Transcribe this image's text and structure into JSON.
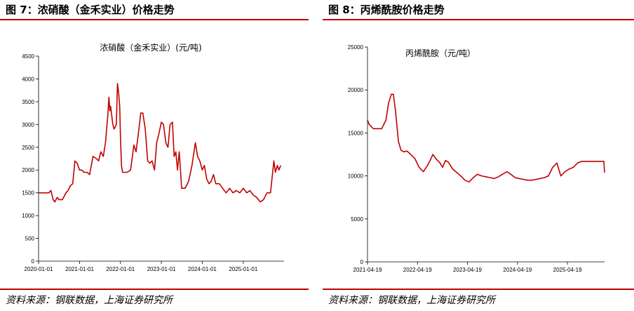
{
  "left_panel": {
    "figure_title": "图 7：浓硝酸（金禾实业）价格走势",
    "source": "资料来源：钢联数据，上海证券研究所"
  },
  "right_panel": {
    "figure_title": "图 8：丙烯酰胺价格走势",
    "source": "资料来源：钢联数据，上海证券研究所"
  },
  "colors": {
    "line": "#c00000",
    "rule": "#c00000"
  },
  "chart_data": [
    {
      "type": "line",
      "title": "浓硝酸（金禾实业）(元/吨)",
      "x_ticks": [
        "2020-01-01",
        "2021-01-01",
        "2022-01-01",
        "2023-01-01",
        "2024-01-01",
        "2025-01-01"
      ],
      "y_ticks": [
        "0",
        "500",
        "1000",
        "1500",
        "2000",
        "2500",
        "3000",
        "3500",
        "4000",
        "4500"
      ],
      "xlim": [
        "2020-01-01",
        "2025-12-31"
      ],
      "ylim": [
        0,
        4500
      ],
      "grid": false,
      "series": [
        {
          "x": [
            "2020-01-01",
            "2020-04-01",
            "2020-04-20",
            "2020-05-10",
            "2020-05-25",
            "2020-06-15",
            "2020-07-01",
            "2020-08-01",
            "2020-09-01",
            "2020-09-20",
            "2020-10-10",
            "2020-11-01",
            "2020-11-20",
            "2020-12-10",
            "2021-01-01",
            "2021-01-20",
            "2021-02-10",
            "2021-03-10",
            "2021-04-01",
            "2021-05-01",
            "2021-06-01",
            "2021-06-20",
            "2021-07-10",
            "2021-08-01",
            "2021-08-20",
            "2021-09-10",
            "2021-09-20",
            "2021-09-28",
            "2021-10-05",
            "2021-10-15",
            "2021-10-25",
            "2021-11-05",
            "2021-11-15",
            "2021-11-25",
            "2021-12-05",
            "2021-12-15",
            "2021-12-25",
            "2022-01-01",
            "2022-01-10",
            "2022-01-20",
            "2022-02-10",
            "2022-03-01",
            "2022-04-01",
            "2022-05-01",
            "2022-05-20",
            "2022-06-10",
            "2022-07-01",
            "2022-07-20",
            "2022-08-10",
            "2022-09-01",
            "2022-09-20",
            "2022-10-10",
            "2022-11-01",
            "2022-11-20",
            "2022-12-10",
            "2023-01-01",
            "2023-01-20",
            "2023-02-10",
            "2023-03-01",
            "2023-03-20",
            "2023-04-10",
            "2023-04-25",
            "2023-05-10",
            "2023-05-25",
            "2023-06-10",
            "2023-07-01",
            "2023-08-01",
            "2023-09-01",
            "2023-10-01",
            "2023-11-01",
            "2023-11-20",
            "2023-12-10",
            "2024-01-01",
            "2024-01-20",
            "2024-02-10",
            "2024-03-01",
            "2024-03-20",
            "2024-04-10",
            "2024-05-01",
            "2024-06-01",
            "2024-07-01",
            "2024-08-01",
            "2024-09-01",
            "2024-10-01",
            "2024-11-01",
            "2024-12-01",
            "2025-01-01",
            "2025-02-01",
            "2025-03-01",
            "2025-04-01",
            "2025-05-01",
            "2025-06-01",
            "2025-07-01",
            "2025-08-01",
            "2025-09-01",
            "2025-10-01",
            "2025-10-15",
            "2025-11-01",
            "2025-11-15",
            "2025-12-01"
          ],
          "y": [
            1500,
            1500,
            1550,
            1350,
            1300,
            1400,
            1350,
            1350,
            1500,
            1550,
            1650,
            1700,
            2200,
            2150,
            2000,
            2000,
            1950,
            1950,
            1900,
            2300,
            2250,
            2200,
            2400,
            2300,
            2600,
            3200,
            3600,
            3300,
            3400,
            3200,
            3000,
            2900,
            2950,
            3000,
            3900,
            3700,
            3400,
            2700,
            2100,
            1950,
            1950,
            1950,
            2000,
            2550,
            2400,
            2800,
            3250,
            3250,
            2900,
            2200,
            2150,
            2200,
            2000,
            2600,
            2800,
            3050,
            3000,
            2600,
            2500,
            3000,
            3050,
            2300,
            2400,
            2000,
            2400,
            1600,
            1600,
            1750,
            2100,
            2600,
            2300,
            2200,
            2000,
            2100,
            1800,
            1700,
            1750,
            1900,
            1700,
            1700,
            1600,
            1500,
            1600,
            1500,
            1550,
            1500,
            1600,
            1500,
            1550,
            1450,
            1400,
            1300,
            1350,
            1500,
            1500,
            2200,
            1950,
            2100,
            2000,
            2100
          ]
        }
      ]
    },
    {
      "type": "line",
      "title": "丙烯酰胺（元/吨）",
      "x_ticks": [
        "2021-04-19",
        "2022-04-19",
        "2023-04-19",
        "2024-04-19",
        "2025-04-19"
      ],
      "y_ticks": [
        "0",
        "5000",
        "10000",
        "15000",
        "20000",
        "25000"
      ],
      "xlim": [
        "2021-04-19",
        "2026-01-15"
      ],
      "ylim": [
        0,
        25000
      ],
      "grid": false,
      "series": [
        {
          "x": [
            "2021-04-19",
            "2021-05-01",
            "2021-06-01",
            "2021-07-01",
            "2021-08-01",
            "2021-09-01",
            "2021-09-20",
            "2021-10-10",
            "2021-10-25",
            "2021-11-10",
            "2021-12-01",
            "2021-12-20",
            "2022-01-10",
            "2022-02-01",
            "2022-03-01",
            "2022-04-01",
            "2022-05-01",
            "2022-06-01",
            "2022-07-01",
            "2022-07-20",
            "2022-08-10",
            "2022-09-01",
            "2022-10-01",
            "2022-10-20",
            "2022-11-10",
            "2022-12-01",
            "2023-01-01",
            "2023-02-01",
            "2023-03-01",
            "2023-04-01",
            "2023-05-01",
            "2023-06-01",
            "2023-07-01",
            "2023-08-01",
            "2023-09-01",
            "2023-10-01",
            "2023-11-01",
            "2023-12-01",
            "2024-01-01",
            "2024-02-01",
            "2024-03-01",
            "2024-04-01",
            "2024-05-01",
            "2024-06-01",
            "2024-07-01",
            "2024-08-01",
            "2024-09-01",
            "2024-10-01",
            "2024-11-01",
            "2024-12-01",
            "2025-01-01",
            "2025-02-01",
            "2025-03-01",
            "2025-04-01",
            "2025-05-01",
            "2025-06-01",
            "2025-07-01",
            "2025-08-01",
            "2025-09-01",
            "2025-10-01",
            "2025-11-01",
            "2025-12-01",
            "2026-01-10",
            "2026-01-15"
          ],
          "y": [
            16500,
            16000,
            15500,
            15500,
            15500,
            16500,
            18500,
            19500,
            19500,
            17500,
            14000,
            13000,
            12800,
            12900,
            12500,
            12000,
            11000,
            10500,
            11200,
            11800,
            12500,
            12000,
            11500,
            11000,
            11800,
            11600,
            10800,
            10400,
            10000,
            9500,
            9300,
            9800,
            10200,
            10000,
            9900,
            9800,
            9700,
            9900,
            10200,
            10500,
            10200,
            9800,
            9700,
            9600,
            9500,
            9500,
            9600,
            9700,
            9800,
            10000,
            11000,
            11500,
            10000,
            10500,
            10800,
            11000,
            11500,
            11700,
            11700,
            11700,
            11700,
            11700,
            11700,
            10400
          ]
        }
      ]
    }
  ]
}
